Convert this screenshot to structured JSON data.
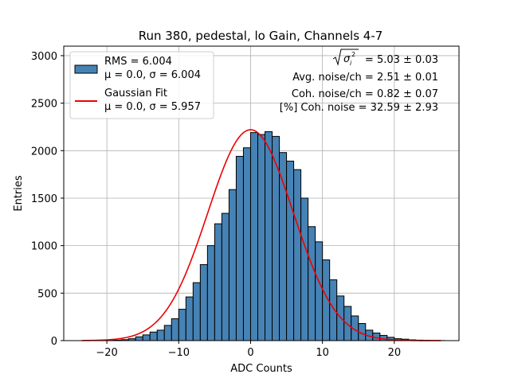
{
  "chart_data": {
    "type": "bar",
    "title": "Run 380, pedestal, lo Gain, Channels 4-7",
    "xlabel": "ADC Counts",
    "ylabel": "Entries",
    "xlim": [
      -26,
      29
    ],
    "ylim": [
      0,
      3100
    ],
    "xticks": [
      -20,
      -10,
      0,
      10,
      20
    ],
    "yticks": [
      0,
      500,
      1000,
      1500,
      2000,
      2500,
      3000
    ],
    "grid": true,
    "bin_width": 1,
    "bin_lefts": [
      -24,
      -23,
      -22,
      -21,
      -20,
      -19,
      -18,
      -17,
      -16,
      -15,
      -14,
      -13,
      -12,
      -11,
      -10,
      -9,
      -8,
      -7,
      -6,
      -5,
      -4,
      -3,
      -2,
      -1,
      0,
      1,
      2,
      3,
      4,
      5,
      6,
      7,
      8,
      9,
      10,
      11,
      12,
      13,
      14,
      15,
      16,
      17,
      18,
      19,
      20,
      21,
      22,
      23,
      24,
      25,
      26
    ],
    "counts": [
      0,
      1,
      1,
      2,
      3,
      5,
      10,
      20,
      40,
      60,
      90,
      110,
      160,
      230,
      330,
      460,
      610,
      800,
      1000,
      1230,
      1340,
      1590,
      1940,
      2030,
      2190,
      2170,
      2200,
      2150,
      1980,
      1890,
      1800,
      1500,
      1200,
      1040,
      850,
      640,
      470,
      360,
      260,
      180,
      110,
      80,
      55,
      35,
      20,
      15,
      8,
      5,
      3,
      1,
      1
    ],
    "series": [
      {
        "name": "RMS = 6.004",
        "detail": "μ = 0.0, σ = 6.004",
        "kind": "histogram",
        "color": "#4682b4"
      },
      {
        "name": "Gaussian Fit",
        "detail": "μ = 0.0, σ = 5.957",
        "kind": "line",
        "color": "#ee0000",
        "mu": 0.0,
        "sigma": 5.957,
        "amplitude": 2220,
        "x_range": [
          -23.5,
          26.5
        ]
      }
    ],
    "legend_position": "upper-left",
    "annotations": [
      "= 5.03 ± 0.03",
      "Avg. noise/ch = 2.51 ± 0.01",
      "Coh. noise/ch = 0.82 ± 0.07",
      "[%] Coh. noise = 32.59 ± 2.93"
    ]
  }
}
